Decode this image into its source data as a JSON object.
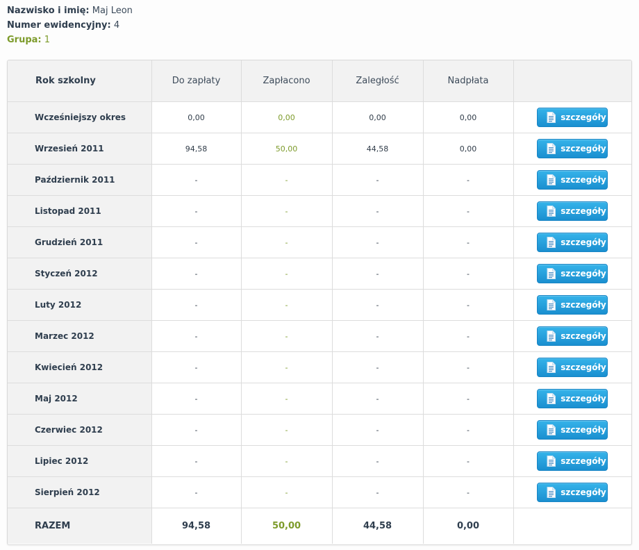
{
  "student": {
    "name_label": "Nazwisko i imię:",
    "name_value": "Maj Leon",
    "id_label": "Numer ewidencyjny:",
    "id_value": "4",
    "group_label": "Grupa:",
    "group_value": "1"
  },
  "table": {
    "headers": [
      "Rok szkolny",
      "Do zapłaty",
      "Zapłacono",
      "Zaległość",
      "Nadpłata",
      ""
    ],
    "button_label": "szczegóły",
    "button_icon": "document-icon",
    "rows": [
      {
        "period": "Wcześniejszy okres",
        "due": "0,00",
        "paid": "0,00",
        "arrears": "0,00",
        "overpaid": "0,00"
      },
      {
        "period": "Wrzesień 2011",
        "due": "94,58",
        "paid": "50,00",
        "arrears": "44,58",
        "overpaid": "0,00"
      },
      {
        "period": "Październik 2011",
        "due": "-",
        "paid": "-",
        "arrears": "-",
        "overpaid": "-"
      },
      {
        "period": "Listopad 2011",
        "due": "-",
        "paid": "-",
        "arrears": "-",
        "overpaid": "-"
      },
      {
        "period": "Grudzień 2011",
        "due": "-",
        "paid": "-",
        "arrears": "-",
        "overpaid": "-"
      },
      {
        "period": "Styczeń 2012",
        "due": "-",
        "paid": "-",
        "arrears": "-",
        "overpaid": "-"
      },
      {
        "period": "Luty 2012",
        "due": "-",
        "paid": "-",
        "arrears": "-",
        "overpaid": "-"
      },
      {
        "period": "Marzec 2012",
        "due": "-",
        "paid": "-",
        "arrears": "-",
        "overpaid": "-"
      },
      {
        "period": "Kwiecień 2012",
        "due": "-",
        "paid": "-",
        "arrears": "-",
        "overpaid": "-"
      },
      {
        "period": "Maj 2012",
        "due": "-",
        "paid": "-",
        "arrears": "-",
        "overpaid": "-"
      },
      {
        "period": "Czerwiec 2012",
        "due": "-",
        "paid": "-",
        "arrears": "-",
        "overpaid": "-"
      },
      {
        "period": "Lipiec 2012",
        "due": "-",
        "paid": "-",
        "arrears": "-",
        "overpaid": "-"
      },
      {
        "period": "Sierpień 2012",
        "due": "-",
        "paid": "-",
        "arrears": "-",
        "overpaid": "-"
      }
    ],
    "total": {
      "label": "RAZEM",
      "due": "94,58",
      "paid": "50,00",
      "arrears": "44,58",
      "overpaid": "0,00"
    }
  },
  "colors": {
    "accent_green": "#7d9b2b",
    "button_blue": "#1a8fd0",
    "header_bg": "#f2f2f2"
  }
}
